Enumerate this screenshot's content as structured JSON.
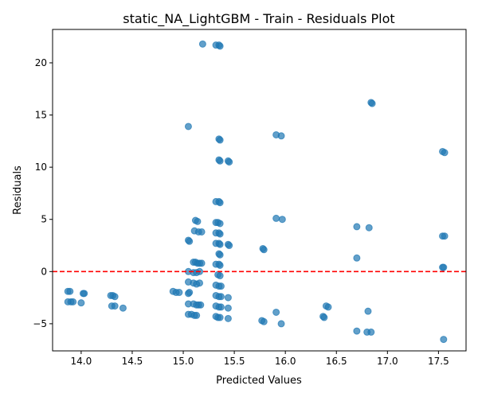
{
  "chart_data": {
    "type": "scatter",
    "title": "static_NA_LightGBM - Train - Residuals Plot",
    "xlabel": "Predicted Values",
    "ylabel": "Residuals",
    "xlim": [
      13.72,
      17.77
    ],
    "ylim": [
      -7.6,
      23.2
    ],
    "xticks": [
      "14.0",
      "14.5",
      "15.0",
      "15.5",
      "16.0",
      "16.5",
      "17.0",
      "17.5"
    ],
    "yticks": [
      "−5",
      "0",
      "5",
      "10",
      "15",
      "20"
    ],
    "xtick_values": [
      14.0,
      14.5,
      15.0,
      15.5,
      16.0,
      16.5,
      17.0,
      17.5
    ],
    "ytick_values": [
      -5,
      0,
      5,
      10,
      15,
      20
    ],
    "grid": false,
    "reference_line": {
      "y": 0,
      "style": "dashed",
      "color": "#ff0000"
    },
    "marker_color": "#1f77b4",
    "marker_alpha": 0.7,
    "points": [
      [
        15.19,
        21.8
      ],
      [
        15.32,
        21.7
      ],
      [
        15.35,
        21.7
      ],
      [
        15.36,
        21.6
      ],
      [
        16.84,
        16.2
      ],
      [
        16.85,
        16.1
      ],
      [
        15.05,
        13.9
      ],
      [
        15.91,
        13.1
      ],
      [
        15.96,
        13.0
      ],
      [
        15.35,
        12.7
      ],
      [
        15.36,
        12.6
      ],
      [
        17.54,
        11.5
      ],
      [
        17.56,
        11.4
      ],
      [
        15.35,
        10.7
      ],
      [
        15.36,
        10.6
      ],
      [
        15.44,
        10.6
      ],
      [
        15.45,
        10.5
      ],
      [
        15.32,
        6.7
      ],
      [
        15.35,
        6.7
      ],
      [
        15.36,
        6.6
      ],
      [
        15.12,
        4.9
      ],
      [
        15.14,
        4.8
      ],
      [
        15.91,
        5.1
      ],
      [
        15.97,
        5.0
      ],
      [
        15.32,
        4.7
      ],
      [
        15.34,
        4.7
      ],
      [
        15.36,
        4.6
      ],
      [
        16.7,
        4.3
      ],
      [
        16.82,
        4.2
      ],
      [
        15.11,
        3.9
      ],
      [
        15.15,
        3.8
      ],
      [
        15.18,
        3.8
      ],
      [
        15.32,
        3.7
      ],
      [
        15.35,
        3.7
      ],
      [
        15.36,
        3.6
      ],
      [
        17.54,
        3.4
      ],
      [
        17.56,
        3.4
      ],
      [
        15.05,
        3.0
      ],
      [
        15.06,
        2.9
      ],
      [
        15.32,
        2.7
      ],
      [
        15.35,
        2.7
      ],
      [
        15.36,
        2.6
      ],
      [
        15.44,
        2.6
      ],
      [
        15.45,
        2.5
      ],
      [
        15.78,
        2.2
      ],
      [
        15.79,
        2.1
      ],
      [
        15.35,
        1.7
      ],
      [
        15.36,
        1.6
      ],
      [
        16.7,
        1.3
      ],
      [
        15.1,
        0.9
      ],
      [
        15.12,
        0.9
      ],
      [
        15.14,
        0.8
      ],
      [
        15.16,
        0.8
      ],
      [
        15.18,
        0.8
      ],
      [
        15.32,
        0.7
      ],
      [
        15.35,
        0.7
      ],
      [
        15.36,
        0.6
      ],
      [
        17.54,
        0.4
      ],
      [
        17.55,
        0.4
      ],
      [
        15.05,
        0.0
      ],
      [
        15.1,
        -0.1
      ],
      [
        15.13,
        -0.1
      ],
      [
        15.16,
        0.0
      ],
      [
        15.34,
        -0.3
      ],
      [
        15.36,
        -0.4
      ],
      [
        15.05,
        -1.0
      ],
      [
        15.1,
        -1.1
      ],
      [
        15.13,
        -1.2
      ],
      [
        15.16,
        -1.1
      ],
      [
        15.32,
        -1.3
      ],
      [
        15.35,
        -1.4
      ],
      [
        15.37,
        -1.4
      ],
      [
        13.87,
        -1.9
      ],
      [
        13.89,
        -1.9
      ],
      [
        14.9,
        -1.9
      ],
      [
        14.93,
        -2.0
      ],
      [
        14.96,
        -2.0
      ],
      [
        15.05,
        -2.1
      ],
      [
        15.06,
        -2.0
      ],
      [
        14.02,
        -2.1
      ],
      [
        14.03,
        -2.1
      ],
      [
        15.32,
        -2.3
      ],
      [
        15.35,
        -2.4
      ],
      [
        15.37,
        -2.4
      ],
      [
        14.29,
        -2.3
      ],
      [
        14.31,
        -2.3
      ],
      [
        14.33,
        -2.4
      ],
      [
        15.44,
        -2.5
      ],
      [
        13.87,
        -2.9
      ],
      [
        13.9,
        -2.9
      ],
      [
        13.92,
        -2.9
      ],
      [
        14.0,
        -3.0
      ],
      [
        15.05,
        -3.1
      ],
      [
        15.1,
        -3.1
      ],
      [
        15.13,
        -3.2
      ],
      [
        15.15,
        -3.2
      ],
      [
        15.17,
        -3.2
      ],
      [
        14.3,
        -3.3
      ],
      [
        14.33,
        -3.3
      ],
      [
        15.32,
        -3.3
      ],
      [
        15.35,
        -3.4
      ],
      [
        15.37,
        -3.4
      ],
      [
        16.4,
        -3.3
      ],
      [
        16.42,
        -3.4
      ],
      [
        14.41,
        -3.5
      ],
      [
        15.44,
        -3.5
      ],
      [
        15.91,
        -3.9
      ],
      [
        16.81,
        -3.8
      ],
      [
        15.05,
        -4.1
      ],
      [
        15.08,
        -4.1
      ],
      [
        15.11,
        -4.2
      ],
      [
        15.13,
        -4.2
      ],
      [
        15.32,
        -4.3
      ],
      [
        15.34,
        -4.4
      ],
      [
        15.36,
        -4.4
      ],
      [
        16.37,
        -4.3
      ],
      [
        16.38,
        -4.4
      ],
      [
        15.44,
        -4.5
      ],
      [
        15.77,
        -4.7
      ],
      [
        15.79,
        -4.8
      ],
      [
        15.96,
        -5.0
      ],
      [
        16.7,
        -5.7
      ],
      [
        16.8,
        -5.8
      ],
      [
        16.84,
        -5.8
      ],
      [
        17.55,
        -6.5
      ]
    ]
  }
}
